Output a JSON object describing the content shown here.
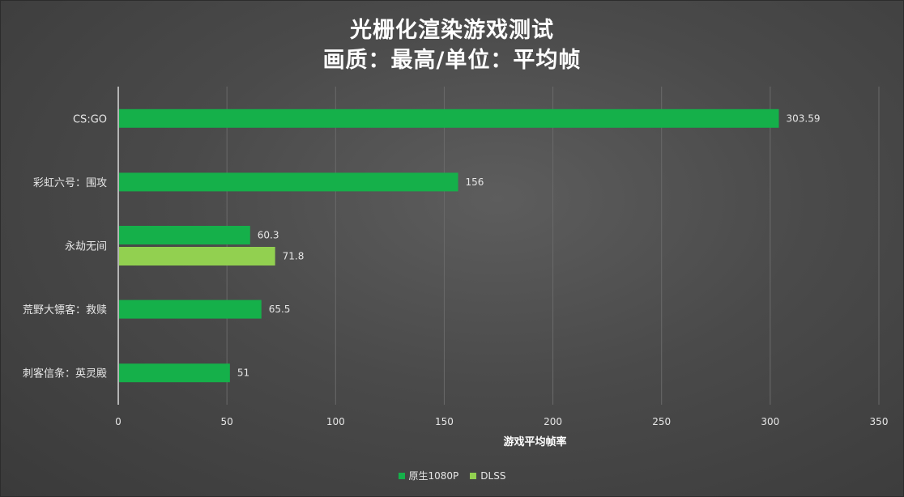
{
  "header": {
    "title_line1": "光栅化渲染游戏测试",
    "title_line2": "画质：最高/单位：平均帧"
  },
  "colors": {
    "series_native": "#15b04a",
    "series_dlss": "#92d050",
    "axis": "#d9d9d9",
    "grid": "#6a6a6a",
    "text": "#e6e6e6"
  },
  "chart_data": {
    "type": "bar",
    "orientation": "horizontal",
    "xlabel": "游戏平均帧率",
    "xlim": [
      0,
      350
    ],
    "xticks": [
      0,
      50,
      100,
      150,
      200,
      250,
      300,
      350
    ],
    "grid": "vertical",
    "legend_position": "bottom",
    "categories": [
      "CS:GO",
      "彩虹六号：围攻",
      "永劫无间",
      "荒野大镖客：救赎",
      "刺客信条：英灵殿"
    ],
    "series": [
      {
        "name": "原生1080P",
        "values": [
          303.59,
          156,
          60.3,
          65.5,
          51
        ]
      },
      {
        "name": "DLSS",
        "values": [
          null,
          null,
          71.8,
          null,
          null
        ]
      }
    ],
    "data_labels": [
      [
        "303.59",
        "156",
        "60.3",
        "65.5",
        "51"
      ],
      [
        null,
        null,
        "71.8",
        null,
        null
      ]
    ]
  }
}
